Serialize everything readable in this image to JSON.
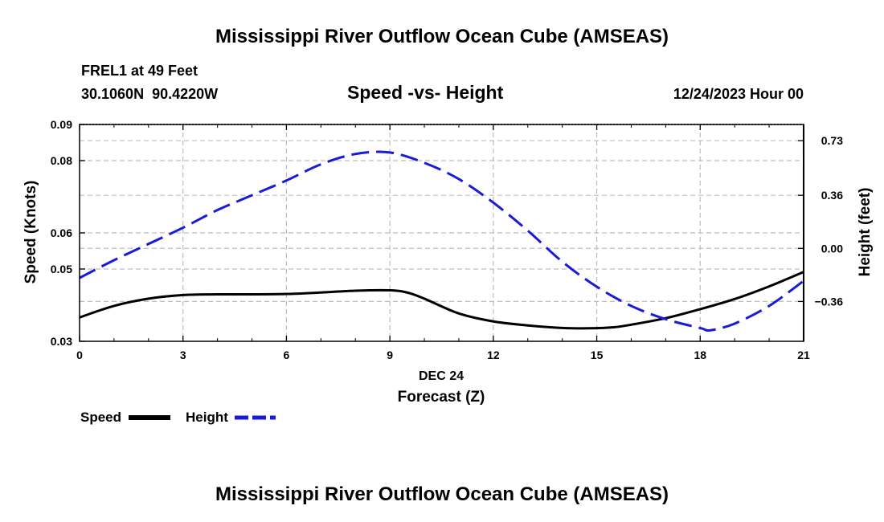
{
  "page": {
    "title": "Mississippi River Outflow Ocean Cube (AMSEAS)",
    "footer_title": "Mississippi River Outflow Ocean Cube (AMSEAS)"
  },
  "header": {
    "station": "FREL1 at 49 Feet",
    "coords": "30.1060N  90.4220W",
    "chart_title": "Speed -vs- Height",
    "datetime": "12/24/2023 Hour 00"
  },
  "chart_data": {
    "type": "line",
    "title": "Speed -vs- Height",
    "xlabel_top": "DEC 24",
    "xlabel": "Forecast (Z)",
    "ylabel_left": "Speed (Knots)",
    "ylabel_right": "Height (feet)",
    "xlim": [
      0,
      21
    ],
    "ylim_left": [
      0.03,
      0.09
    ],
    "ylim_right": [
      -0.63,
      0.84
    ],
    "x_ticks": [
      0,
      3,
      6,
      9,
      12,
      15,
      18,
      21
    ],
    "y_left_ticks": [
      0.03,
      0.05,
      0.06,
      0.08,
      0.09
    ],
    "y_left_tick_labels": [
      "0.03",
      "0.05",
      "0.06",
      "0.08",
      "0.09"
    ],
    "y_right_ticks": [
      -0.36,
      0.0,
      0.36,
      0.73
    ],
    "y_right_tick_labels": [
      "−0.36",
      "0.00",
      "0.36",
      "0.73"
    ],
    "grid": true,
    "series": [
      {
        "name": "Speed",
        "axis": "left",
        "color": "#000000",
        "dash": "solid",
        "x": [
          0,
          1,
          2,
          3,
          4,
          5,
          6,
          7,
          8,
          9,
          9.5,
          10,
          11,
          12,
          13,
          14,
          14.8,
          15.5,
          16,
          17,
          18,
          19,
          20,
          21
        ],
        "values": [
          0.0366,
          0.0398,
          0.0418,
          0.0428,
          0.043,
          0.043,
          0.0431,
          0.0435,
          0.044,
          0.0441,
          0.0435,
          0.0418,
          0.0377,
          0.0355,
          0.0344,
          0.0337,
          0.0336,
          0.0339,
          0.0346,
          0.0364,
          0.0389,
          0.0417,
          0.0452,
          0.0492
        ]
      },
      {
        "name": "Height",
        "axis": "right",
        "color": "#1a1adb",
        "dash": "dashed",
        "x": [
          0,
          1,
          2,
          3,
          4,
          5,
          6,
          7,
          8,
          9,
          10,
          11,
          12,
          13,
          14,
          15,
          16,
          17,
          18,
          18.3,
          19,
          20,
          21
        ],
        "values": [
          -0.2,
          -0.08,
          0.03,
          0.14,
          0.26,
          0.36,
          0.46,
          0.57,
          0.64,
          0.65,
          0.58,
          0.47,
          0.31,
          0.12,
          -0.09,
          -0.26,
          -0.39,
          -0.48,
          -0.54,
          -0.555,
          -0.51,
          -0.39,
          -0.22
        ]
      }
    ],
    "legend": {
      "placement": "bottom-left",
      "entries": [
        {
          "label": "Speed",
          "color": "#000000",
          "dash": "solid"
        },
        {
          "label": "Height",
          "color": "#1a1adb",
          "dash": "dashed"
        }
      ]
    }
  }
}
